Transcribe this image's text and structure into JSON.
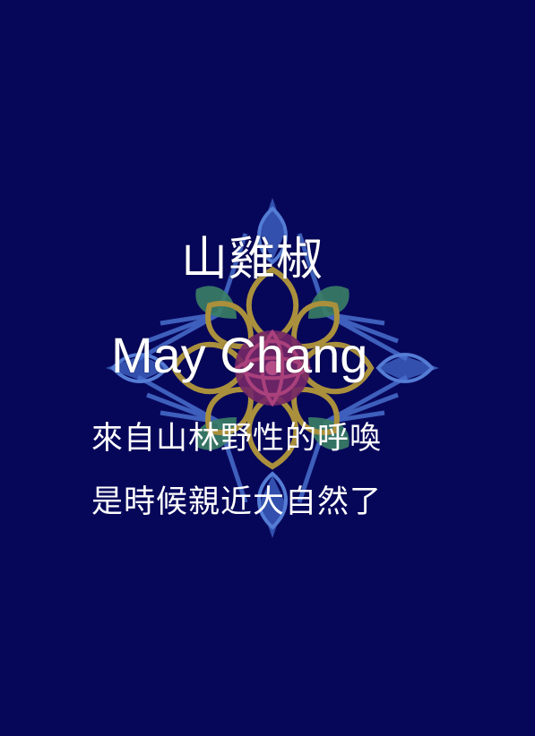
{
  "background_color": "#07075a",
  "decoration": {
    "icon": "mandala-ornament-icon",
    "colors": {
      "outer_blue": "#3f63c4",
      "inner_blue": "#5b86e0",
      "green": "#4a8f6a",
      "gold": "#b59a3a",
      "magenta": "#8b2e6e"
    }
  },
  "title_chinese": "山雞椒",
  "title_english": "May Chang",
  "tagline_line1": "來自山林野性的呼喚",
  "tagline_line2": "是時候親近大自然了"
}
